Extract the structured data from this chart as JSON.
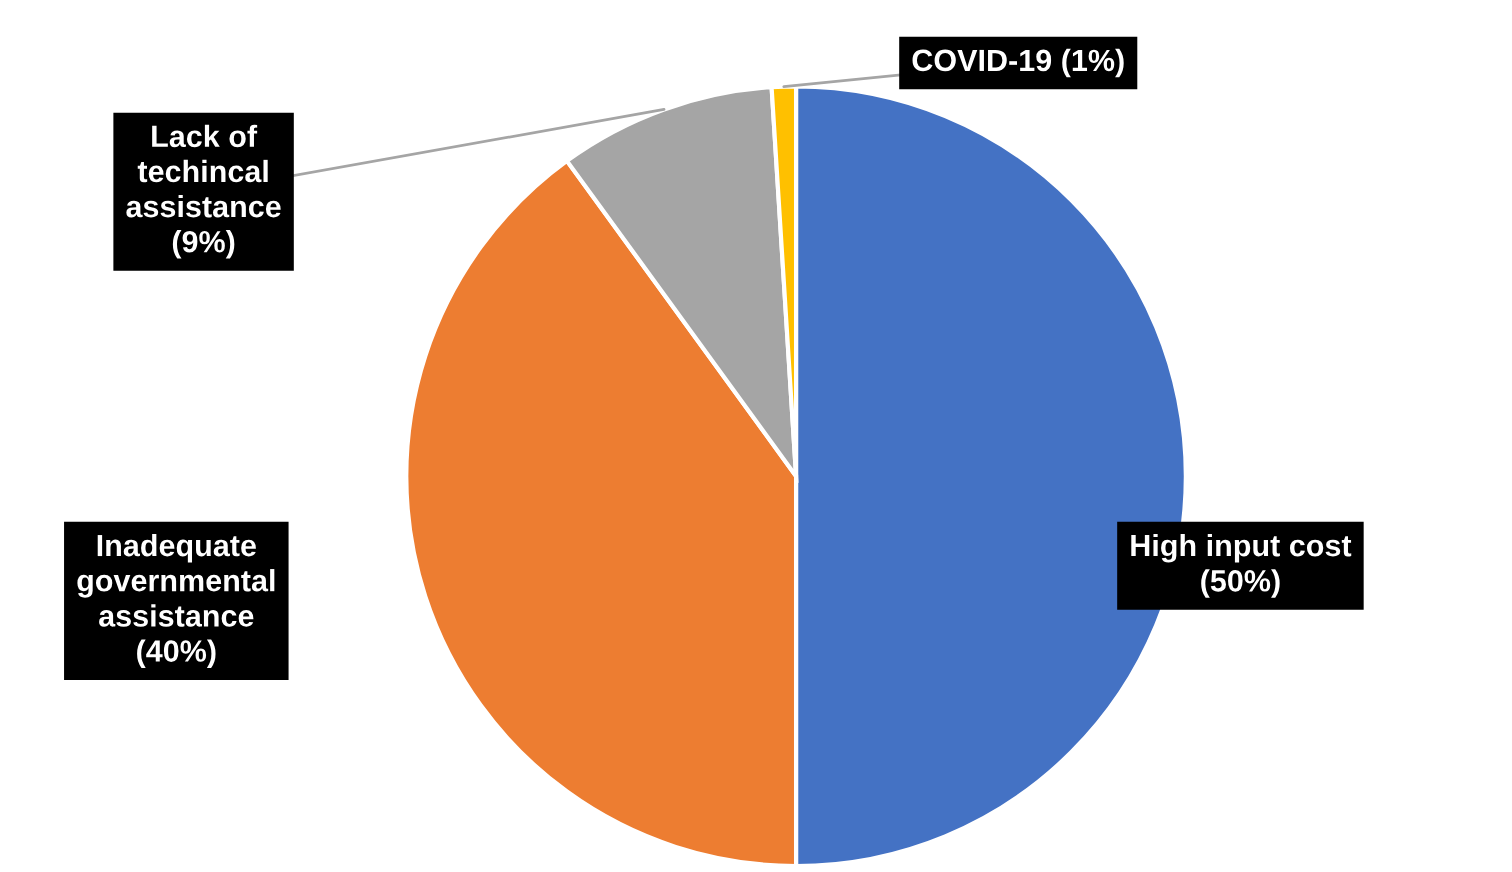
{
  "chart_data": {
    "type": "pie",
    "categories": [
      "High input cost",
      "Inadequate\ngovernmental\nassistance",
      "Lack of\ntechincal\nassistance",
      "COVID-19"
    ],
    "values": [
      50,
      40,
      9,
      1
    ],
    "value_labels": [
      "(50%)",
      "(40%)",
      "(9%)",
      "(1%)"
    ],
    "colors": [
      "#4472c4",
      "#ed7d31",
      "#a5a5a5",
      "#ffc000"
    ],
    "legend": false
  }
}
